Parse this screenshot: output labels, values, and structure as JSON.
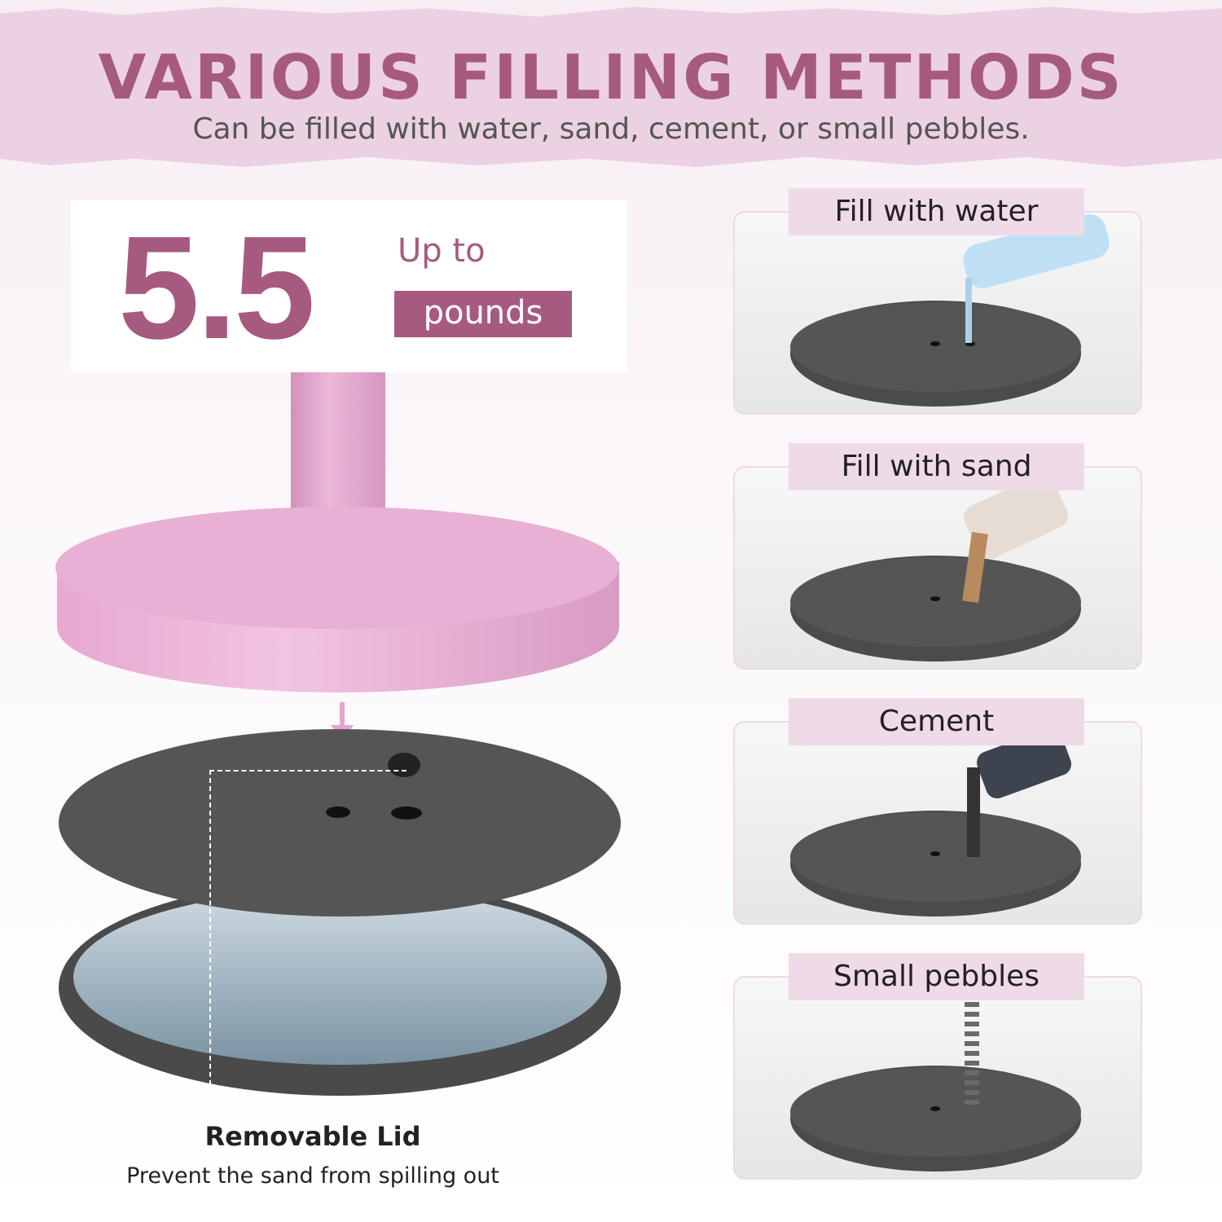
{
  "header": {
    "title": "VARIOUS FILLING METHODS",
    "subtitle": "Can be filled with water, sand, cement, or small pebbles."
  },
  "capacity": {
    "value": "5.5",
    "prefix": "Up to",
    "unit": "pounds"
  },
  "lid": {
    "title": "Removable Lid",
    "description": "Prevent the sand from spilling out"
  },
  "methods": [
    {
      "label": "Fill with water",
      "icon": "water-bottle-icon",
      "fill_color": "#a9d1ec"
    },
    {
      "label": "Fill with sand",
      "icon": "sand-jar-icon",
      "fill_color": "#b98a5e"
    },
    {
      "label": "Cement",
      "icon": "cement-cup-icon",
      "fill_color": "#333333"
    },
    {
      "label": "Small pebbles",
      "icon": "pebbles-icon",
      "fill_color": "#6a6a6a"
    }
  ],
  "colors": {
    "accent": "#a65a80",
    "banner": "#ecd1e2",
    "label_bg": "#efdbe8",
    "stand_pink": "#e7b0d4",
    "base_gray": "#4b4b4b"
  }
}
